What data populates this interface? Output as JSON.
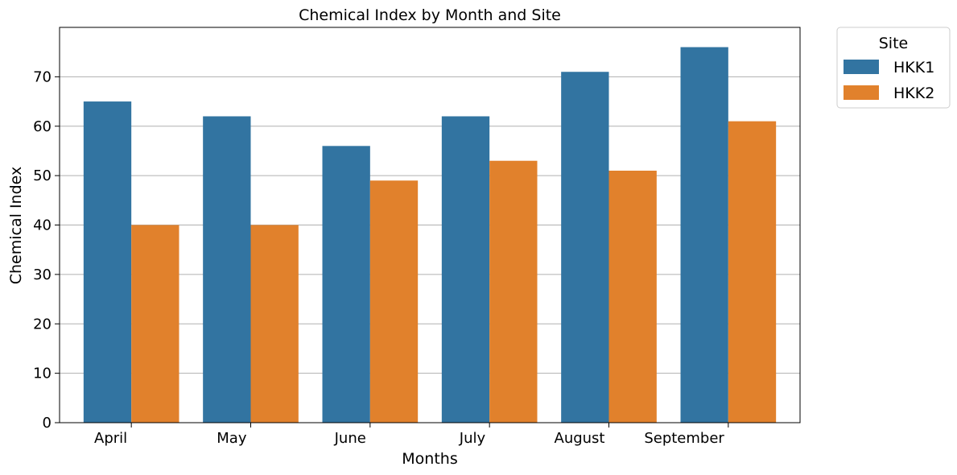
{
  "chart_data": {
    "type": "bar",
    "title": "Chemical Index by Month and Site",
    "xlabel": "Months",
    "ylabel": "Chemical Index",
    "categories": [
      "April",
      "May",
      "June",
      "July",
      "August",
      "September"
    ],
    "series": [
      {
        "name": "HKK1",
        "color": "#3274a1",
        "values": [
          65,
          62,
          56,
          62,
          71,
          76
        ]
      },
      {
        "name": "HKK2",
        "color": "#e1812c",
        "values": [
          40,
          40,
          49,
          53,
          51,
          61
        ]
      }
    ],
    "ylim": [
      0,
      80
    ],
    "yticks": [
      0,
      10,
      20,
      30,
      40,
      50,
      60,
      70
    ],
    "grid": "horizontal",
    "legend": {
      "title": "Site",
      "placement": "outside-top-right"
    }
  }
}
